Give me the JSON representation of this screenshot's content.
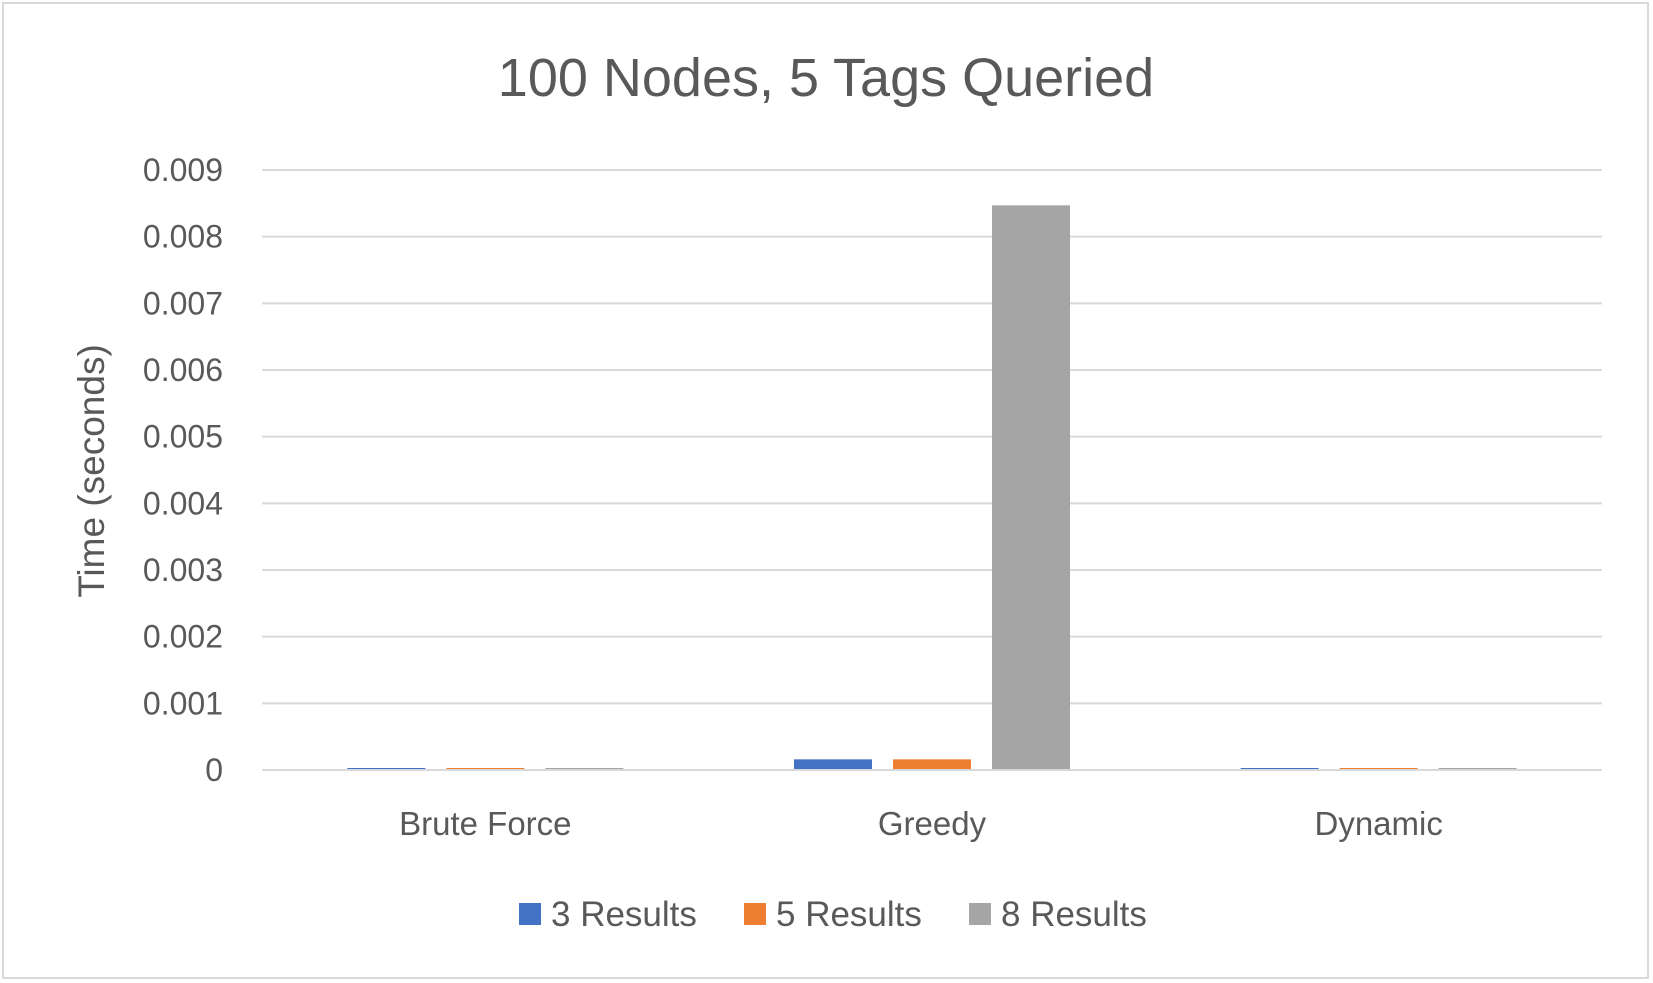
{
  "chart_data": {
    "type": "bar",
    "title": "100 Nodes, 5 Tags Queried",
    "xlabel": "",
    "ylabel": "Time (seconds)",
    "categories": [
      "Brute Force",
      "Greedy",
      "Dynamic"
    ],
    "series": [
      {
        "name": "3 Results",
        "color": "#4472C4",
        "values": [
          1e-06,
          0.00016,
          3e-05
        ]
      },
      {
        "name": "5 Results",
        "color": "#ED7D31",
        "values": [
          1e-06,
          0.00016,
          3e-05
        ]
      },
      {
        "name": "8 Results",
        "color": "#A5A5A5",
        "values": [
          1e-06,
          0.00847,
          3e-05
        ]
      }
    ],
    "yticks": [
      "0",
      "0.001",
      "0.002",
      "0.003",
      "0.004",
      "0.005",
      "0.006",
      "0.007",
      "0.008",
      "0.009"
    ],
    "ylim": [
      0,
      0.009
    ],
    "grid": true,
    "legend_position": "bottom"
  }
}
